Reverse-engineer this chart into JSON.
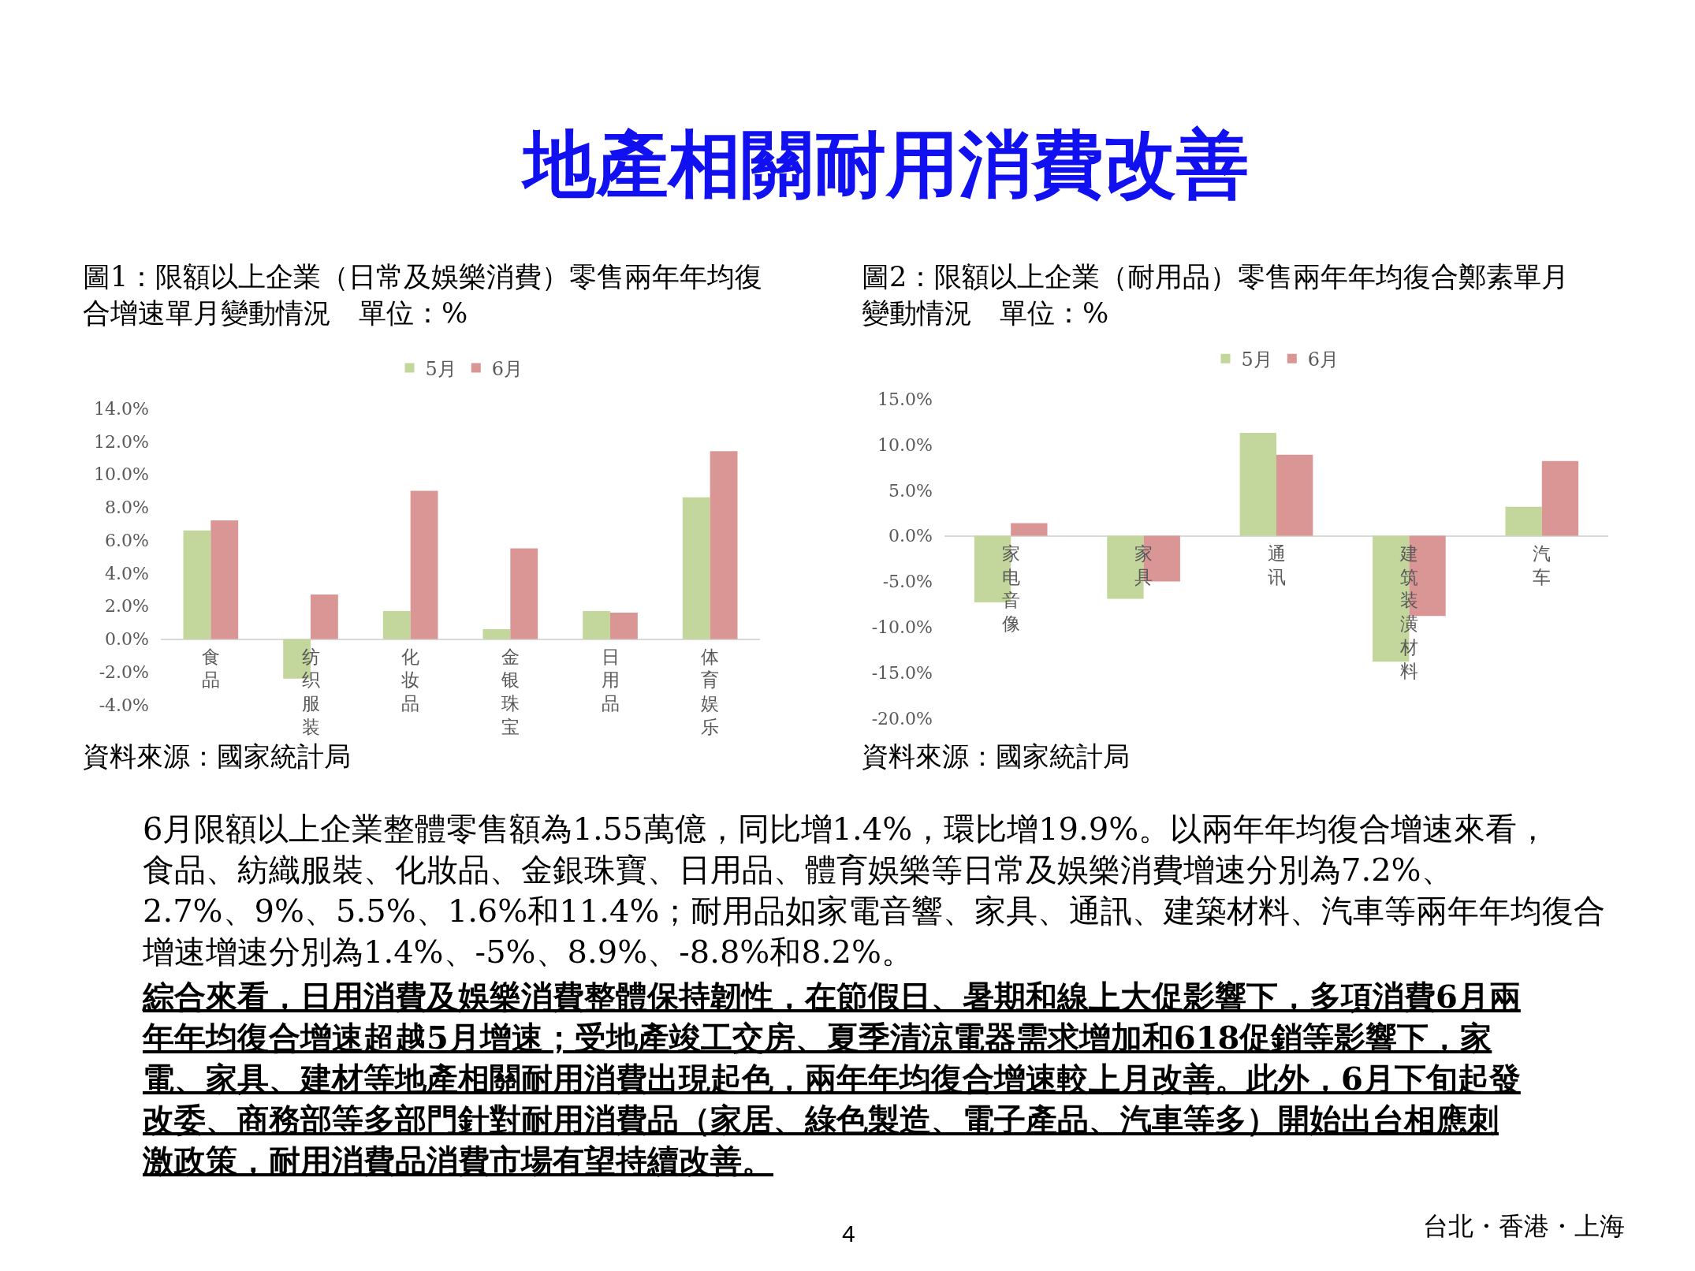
{
  "chart_data": [
    {
      "type": "other",
      "title": "地產相關耐用消費改善"
    },
    {
      "type": "bar",
      "title": "圖1：限額以上企業（日常及娛樂消費）零售兩年年均復合增速單月變動情況　單位：%",
      "categories": [
        "食品",
        "纺织服装",
        "化妆品",
        "金银珠宝",
        "日用品",
        "体育娱乐"
      ],
      "series": [
        {
          "name": "5月",
          "color": "#c3d69b",
          "values": [
            6.6,
            -2.4,
            1.7,
            0.6,
            1.7,
            8.6
          ]
        },
        {
          "name": "6月",
          "color": "#d99694",
          "values": [
            7.2,
            2.7,
            9.0,
            5.5,
            1.6,
            11.4
          ]
        }
      ],
      "ylim": [
        -4,
        14
      ],
      "yticks": [
        {
          "value": -4,
          "label": "-4.0%"
        },
        {
          "value": -2,
          "label": "-2.0%"
        },
        {
          "value": 0,
          "label": "0.0%"
        },
        {
          "value": 2,
          "label": "2.0%"
        },
        {
          "value": 4,
          "label": "4.0%"
        },
        {
          "value": 6,
          "label": "6.0%"
        },
        {
          "value": 8,
          "label": "8.0%"
        },
        {
          "value": 10,
          "label": "10.0%"
        },
        {
          "value": 12,
          "label": "12.0%"
        },
        {
          "value": 14,
          "label": "14.0%"
        }
      ],
      "legend": "top",
      "annotations": [
        "資料來源：國家統計局"
      ]
    },
    {
      "type": "bar",
      "title": "圖2：限額以上企業（耐用品）零售兩年年均復合鄭素單月變動情況　單位：%",
      "categories": [
        "家电音像",
        "家具",
        "通讯",
        "建筑装潢材料",
        "汽车"
      ],
      "series": [
        {
          "name": "5月",
          "color": "#c3d69b",
          "values": [
            -7.3,
            -6.9,
            11.3,
            -13.8,
            3.2
          ]
        },
        {
          "name": "6月",
          "color": "#d99694",
          "values": [
            1.4,
            -5.0,
            8.9,
            -8.8,
            8.2
          ]
        }
      ],
      "ylim": [
        -20,
        15
      ],
      "yticks": [
        {
          "value": -20,
          "label": "-20.0%"
        },
        {
          "value": -15,
          "label": "-15.0%"
        },
        {
          "value": -10,
          "label": "-10.0%"
        },
        {
          "value": -5,
          "label": "-5.0%"
        },
        {
          "value": 0,
          "label": "0.0%"
        },
        {
          "value": 5,
          "label": "5.0%"
        },
        {
          "value": 10,
          "label": "10.0%"
        },
        {
          "value": 15,
          "label": "15.0%"
        }
      ],
      "legend": "top",
      "annotations": [
        "資料來源：國家統計局"
      ]
    },
    {
      "type": "other",
      "annotations": [
        "6月限額以上企業整體零售額為1.55萬億，同比增1.4%，環比增19.9%。以兩年年均復合增速來看，食品、紡織服裝、化妝品、金銀珠寶、日用品、體育娛樂等日常及娛樂消費增速分別為7.2%、2.7%、9%、5.5%、1.6%和11.4%；耐用品如家電音響、家具、通訊、建築材料、汽車等兩年年均復合增速增速分別為1.4%、-5%、8.9%、-8.8%和8.2%。",
        "綜合來看，日用消費及娛樂消費整體保持韌性，在節假日、暑期和線上大促影響下，多項消費6月兩年年均復合增速超越5月增速；受地產竣工交房、夏季清涼電器需求增加和618促銷等影響下，家電、家具、建材等地產相關耐用消費出現起色，兩年年均復合增速較上月改善。此外，6月下旬起發改委、商務部等多部門針對耐用消費品（家居、綠色製造、電子產品、汽車等多）開始出台相應刺激政策，耐用消費品消費市場有望持續改善。",
        "4",
        "台北・香港・上海"
      ]
    }
  ]
}
